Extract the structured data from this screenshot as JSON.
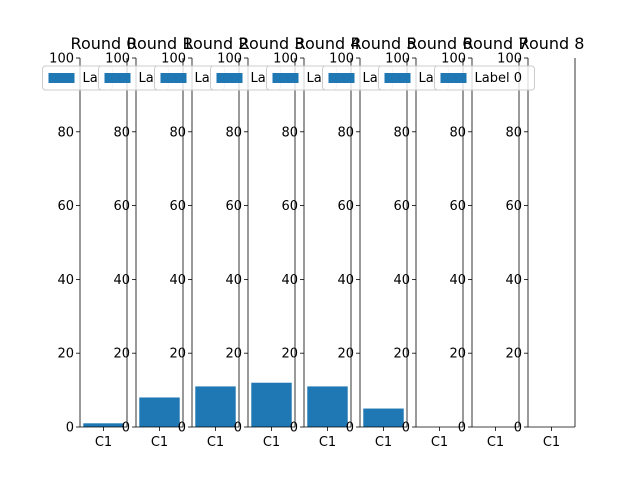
{
  "chart_data": {
    "type": "bar",
    "bar_color": "#1f77b4",
    "ylim": [
      0,
      100
    ],
    "yticks": [
      0,
      20,
      40,
      60,
      80,
      100
    ],
    "categories": [
      "C1"
    ],
    "legend_placement": "top",
    "series_name": "Label 0",
    "grid": false,
    "panels": [
      {
        "title": "Round 0",
        "values": [
          1
        ],
        "legend": "Label 0",
        "legend_visible": "La"
      },
      {
        "title": "Round 1",
        "values": [
          8
        ],
        "legend": "Label 0",
        "legend_visible": "La"
      },
      {
        "title": "Round 2",
        "values": [
          11
        ],
        "legend": "Label 0",
        "legend_visible": "La"
      },
      {
        "title": "Round 3",
        "values": [
          12
        ],
        "legend": "Label 0",
        "legend_visible": "La"
      },
      {
        "title": "Round 4",
        "values": [
          11
        ],
        "legend": "Label 0",
        "legend_visible": "La"
      },
      {
        "title": "Round 5",
        "values": [
          5
        ],
        "legend": "Label 0",
        "legend_visible": "La"
      },
      {
        "title": "Round 6",
        "values": [
          0
        ],
        "legend": "Label 0",
        "legend_visible": "La"
      },
      {
        "title": "Round 7",
        "values": [
          0
        ],
        "legend": "Label 0",
        "legend_visible": "La"
      },
      {
        "title": "Round 8",
        "values": [
          0
        ],
        "legend": null,
        "legend_visible": null
      }
    ],
    "last_legend_label": "Label 0"
  }
}
